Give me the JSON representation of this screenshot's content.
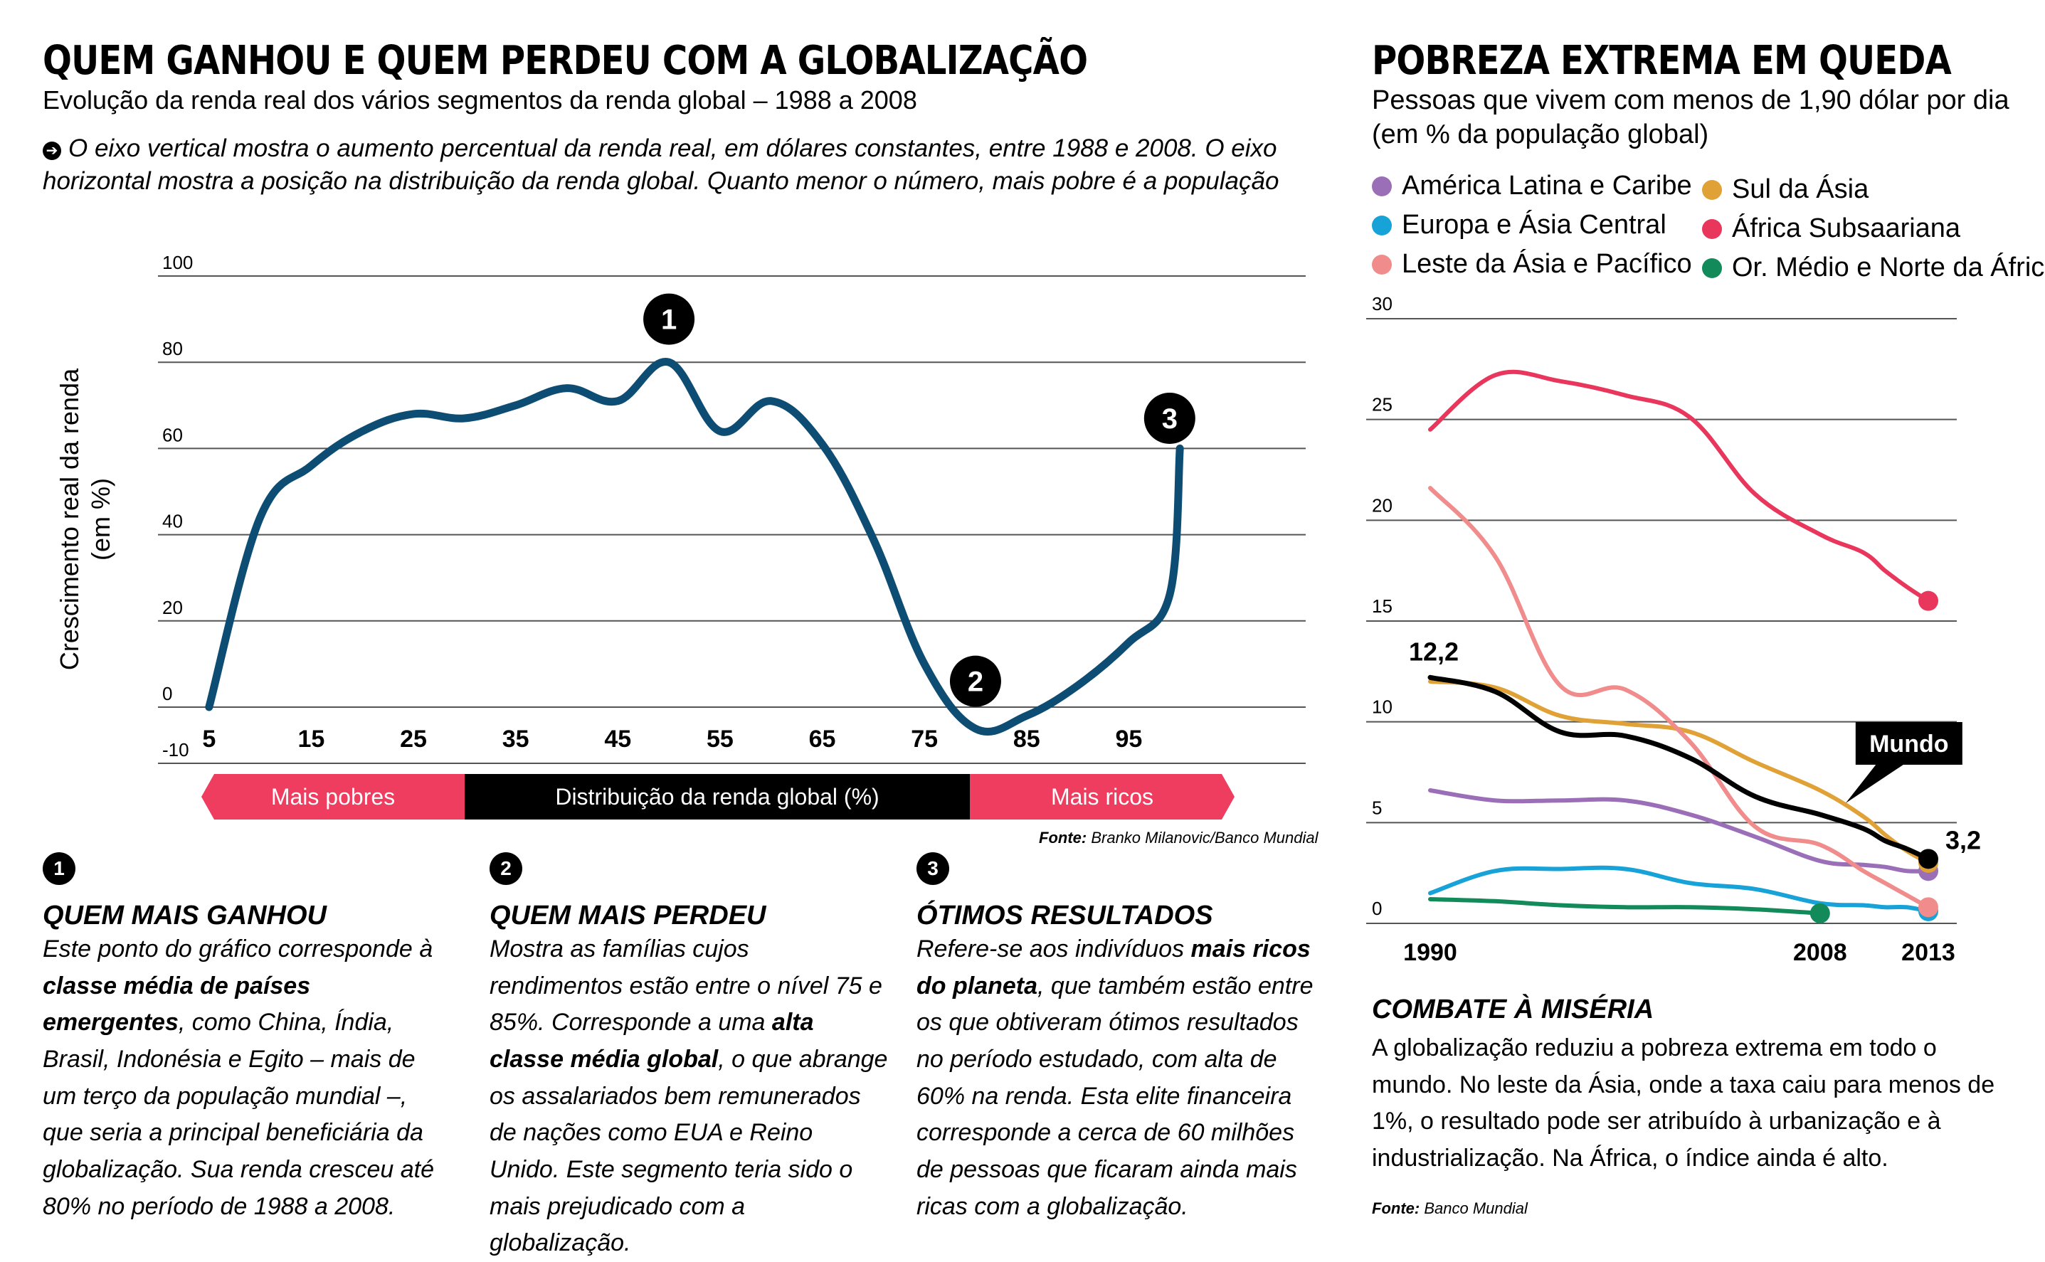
{
  "left": {
    "title": "QUEM GANHOU E QUEM PERDEU COM A GLOBALIZAÇÃO",
    "subtitle": "Evolução da renda real dos vários segmentos da renda global – 1988 a 2008",
    "note": "O eixo vertical mostra o aumento percentual da renda real, em dólares constantes, entre 1988 e 2008. O eixo horizontal mostra a posição na distribuição da renda global. Quanto menor o número, mais pobre é a população",
    "band": {
      "left": "Mais pobres",
      "center": "Distribuição da renda global (%)",
      "right": "Mais ricos"
    },
    "source_label": "Fonte:",
    "source": "Branko Milanovic/Banco Mundial",
    "notes": [
      {
        "num": "1",
        "head": "QUEM MAIS GANHOU",
        "parts": [
          {
            "t": "Este ponto do gráfico corresponde à "
          },
          {
            "t": "classe média de países emergentes",
            "b": true
          },
          {
            "t": ", como China, Índia, Brasil, Indonésia e Egito – mais de um terço da população mundial –, que seria a principal beneficiária da globalização. Sua renda cresceu até 80% no período de 1988 a 2008."
          }
        ]
      },
      {
        "num": "2",
        "head": "QUEM MAIS PERDEU",
        "parts": [
          {
            "t": "Mostra as famílias cujos rendimentos estão entre o nível 75 e 85%. Corresponde a uma "
          },
          {
            "t": "alta classe média global",
            "b": true
          },
          {
            "t": ", o que abrange os assalariados bem remunerados de nações como EUA e Reino Unido. Este segmento teria sido o mais prejudicado com a globalização."
          }
        ]
      },
      {
        "num": "3",
        "head": "ÓTIMOS RESULTADOS",
        "parts": [
          {
            "t": "Refere-se aos indivíduos "
          },
          {
            "t": "mais ricos do planeta",
            "b": true
          },
          {
            "t": ", que também estão entre os que obtiveram ótimos resultados no período estudado, com alta de 60% na renda. Esta elite financeira corresponde a cerca de 60 milhões de pessoas que ficaram ainda mais ricas com a globalização."
          }
        ]
      }
    ]
  },
  "right": {
    "title": "POBREZA EXTREMA EM QUEDA",
    "subtitle_line1": "Pessoas que vivem com menos de 1,90 dólar por dia",
    "subtitle_line2": "(em % da população global)",
    "bottom_head": "COMBATE À MISÉRIA",
    "bottom_text": "A globalização reduziu a pobreza extrema em todo o mundo. No leste da Ásia, onde a taxa caiu para menos de 1%, o resultado pode ser atribuído à urbanização e à industrialização. Na África, o índice ainda é alto.",
    "source_label": "Fonte:",
    "source": "Banco Mundial"
  },
  "chart_data": [
    {
      "type": "line",
      "title": "QUEM GANHOU E QUEM PERDEU COM A GLOBALIZAÇÃO",
      "ylabel": "Crescimento real da renda (em %)",
      "xlabel": "Distribuição da renda global (%)",
      "ylim": [
        -10,
        100
      ],
      "yticks": [
        100,
        80,
        60,
        40,
        20,
        0,
        -10
      ],
      "xticks": [
        5,
        15,
        25,
        35,
        45,
        55,
        65,
        75,
        85,
        95
      ],
      "xlim": [
        0,
        105
      ],
      "grid": true,
      "color": "#0e4d73",
      "series": [
        {
          "x": [
            5,
            10,
            15,
            20,
            25,
            30,
            35,
            40,
            45,
            50,
            55,
            60,
            65,
            70,
            75,
            80,
            85,
            90,
            95,
            99,
            100
          ],
          "y": [
            0,
            44,
            56,
            64,
            68,
            67,
            70,
            74,
            71,
            80,
            64,
            71,
            61,
            39,
            10,
            -5,
            -2,
            5,
            15,
            26,
            60
          ]
        }
      ],
      "annotations": [
        {
          "label": "1",
          "x": 50,
          "y": 90
        },
        {
          "label": "2",
          "x": 80,
          "y": 6
        },
        {
          "label": "3",
          "x": 99,
          "y": 67
        }
      ]
    },
    {
      "type": "line",
      "title": "POBREZA EXTREMA EM QUEDA",
      "ylim": [
        0,
        30
      ],
      "yticks": [
        30,
        25,
        20,
        15,
        10,
        5,
        0
      ],
      "xticks": [
        1990,
        2008,
        2013
      ],
      "xlim": [
        1990,
        2013
      ],
      "grid": true,
      "legend": "top",
      "series": [
        {
          "name": "América Latina e Caribe",
          "color": "#9b6fb8",
          "x": [
            1990,
            1993,
            1996,
            1999,
            2002,
            2005,
            2008,
            2010,
            2011,
            2012,
            2013
          ],
          "y": [
            6.6,
            6.1,
            6.1,
            6.1,
            5.4,
            4.3,
            3.1,
            2.9,
            2.8,
            2.6,
            2.6
          ]
        },
        {
          "name": "Sul da Ásia",
          "color": "#e0a136",
          "x": [
            1990,
            1993,
            1996,
            1999,
            2002,
            2005,
            2008,
            2010,
            2011,
            2012,
            2013
          ],
          "y": [
            12.0,
            11.7,
            10.3,
            9.9,
            9.5,
            8.0,
            6.6,
            5.3,
            4.4,
            3.6,
            3.0
          ]
        },
        {
          "name": "Europa e Ásia Central",
          "color": "#17a2d8",
          "x": [
            1990,
            1993,
            1996,
            1999,
            2002,
            2005,
            2008,
            2010,
            2011,
            2012,
            2013
          ],
          "y": [
            1.5,
            2.6,
            2.7,
            2.7,
            2.0,
            1.7,
            1.0,
            0.9,
            0.8,
            0.8,
            0.6
          ]
        },
        {
          "name": "África Subsaariana",
          "color": "#e8365c",
          "x": [
            1990,
            1993,
            1996,
            1999,
            2002,
            2005,
            2008,
            2010,
            2011,
            2012,
            2013
          ],
          "y": [
            24.5,
            27.2,
            26.9,
            26.2,
            25.1,
            21.3,
            19.3,
            18.4,
            17.5,
            16.7,
            16.0
          ]
        },
        {
          "name": "Leste da Ásia e Pacífico",
          "color": "#f08c8c",
          "x": [
            1990,
            1993,
            1996,
            1999,
            2002,
            2005,
            2008,
            2010,
            2011,
            2012,
            2013
          ],
          "y": [
            21.6,
            18.2,
            11.8,
            11.6,
            9.0,
            4.8,
            3.9,
            2.6,
            2.0,
            1.4,
            0.8
          ]
        },
        {
          "name": "Or. Médio e Norte da África",
          "color": "#138a5a",
          "x": [
            1990,
            1993,
            1996,
            1999,
            2002,
            2005,
            2008
          ],
          "y": [
            1.2,
            1.1,
            0.9,
            0.8,
            0.8,
            0.7,
            0.5
          ]
        },
        {
          "name": "Mundo",
          "color": "#000000",
          "x": [
            1990,
            1993,
            1996,
            1999,
            2002,
            2005,
            2008,
            2010,
            2011,
            2012,
            2013
          ],
          "y": [
            12.2,
            11.5,
            9.5,
            9.3,
            8.2,
            6.3,
            5.4,
            4.7,
            4.1,
            3.7,
            3.2
          ]
        }
      ],
      "point_labels": [
        {
          "label": "12,2",
          "series": "Mundo",
          "x": 1990
        },
        {
          "label": "3,2",
          "series": "Mundo",
          "x": 2013
        },
        {
          "label": "Mundo",
          "series": "Mundo",
          "x": 2008
        }
      ]
    }
  ]
}
